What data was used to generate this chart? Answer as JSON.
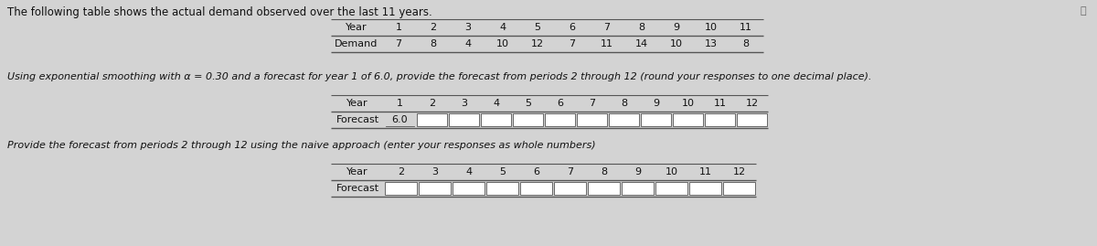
{
  "title": "The following table shows the actual demand observed over the last 11 years.",
  "table1_year_headers": [
    "1",
    "2",
    "3",
    "4",
    "5",
    "6",
    "7",
    "8",
    "9",
    "10",
    "11"
  ],
  "table1_demand_values": [
    "7",
    "8",
    "4",
    "10",
    "12",
    "7",
    "11",
    "14",
    "10",
    "13",
    "8"
  ],
  "exp_smooth_text": "Using exponential smoothing with α = 0.30 and a forecast for year 1 of 6.0, provide the forecast from periods 2 through 12 (round your responses to one decimal place).",
  "table2_year_headers": [
    "1",
    "2",
    "3",
    "4",
    "5",
    "6",
    "7",
    "8",
    "9",
    "10",
    "11",
    "12"
  ],
  "table2_forecast_fixed": "6.0",
  "naive_text": "Provide the forecast from periods 2 through 12 using the naive approach (enter your responses as whole numbers)",
  "table3_year_headers": [
    "2",
    "3",
    "4",
    "5",
    "6",
    "7",
    "8",
    "9",
    "10",
    "11",
    "12"
  ],
  "bg_color": "#d3d3d3",
  "line_color": "#555555",
  "text_color": "#111111",
  "cell_face": "#ffffff",
  "title_fs": 8.5,
  "body_fs": 8.0,
  "table_fs": 8.0
}
